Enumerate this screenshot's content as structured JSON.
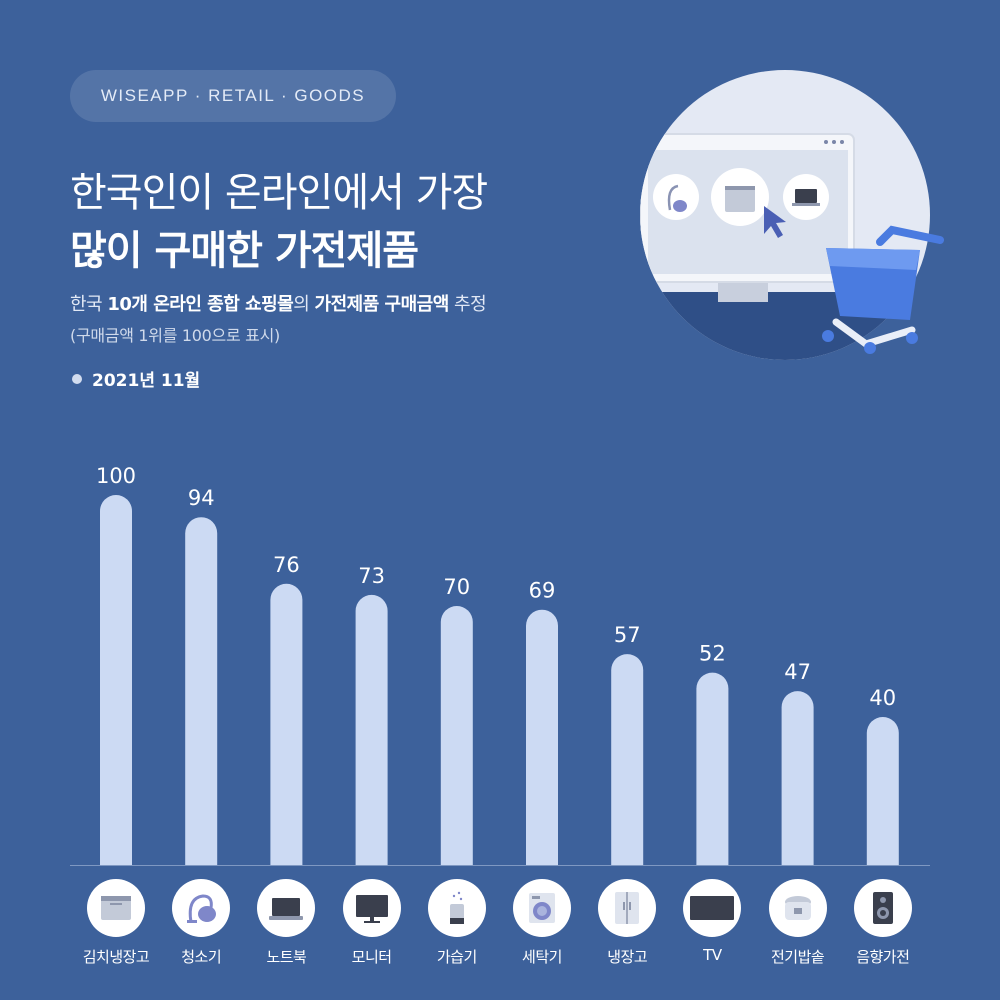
{
  "header": {
    "tag": "WISEAPP · RETAIL · GOODS",
    "title_line1": "한국인이 온라인에서 가장",
    "title_line2": "많이 구매한 가전제품",
    "subtitle_parts": [
      {
        "text": "한국 ",
        "bold": false
      },
      {
        "text": "10개 온라인 종합 쇼핑몰",
        "bold": true
      },
      {
        "text": "의 ",
        "bold": false
      },
      {
        "text": "가전제품 구매금액",
        "bold": true
      },
      {
        "text": " 추정",
        "bold": false
      }
    ],
    "note": "(구매금액 1위를 100으로 표시)",
    "date": "2021년 11월"
  },
  "colors": {
    "background": "#3d619b",
    "bar": "#ccdaf3",
    "icon_bg": "#ffffff",
    "icon_dark": "#3a3f4d",
    "icon_accent": "#7f87c9"
  },
  "chart_data": {
    "type": "bar",
    "title": "",
    "xlabel": "",
    "ylabel": "",
    "ylim": [
      0,
      100
    ],
    "grid": false,
    "categories": [
      "김치냉장고",
      "청소기",
      "노트북",
      "모니터",
      "가습기",
      "세탁기",
      "냉장고",
      "TV",
      "전기밥솥",
      "음향가전"
    ],
    "values": [
      100,
      94,
      76,
      73,
      70,
      69,
      57,
      52,
      47,
      40
    ],
    "icons": [
      "kimchi-fridge-icon",
      "vacuum-icon",
      "laptop-icon",
      "monitor-icon",
      "humidifier-icon",
      "washer-icon",
      "fridge-icon",
      "tv-icon",
      "rice-cooker-icon",
      "speaker-icon"
    ]
  }
}
